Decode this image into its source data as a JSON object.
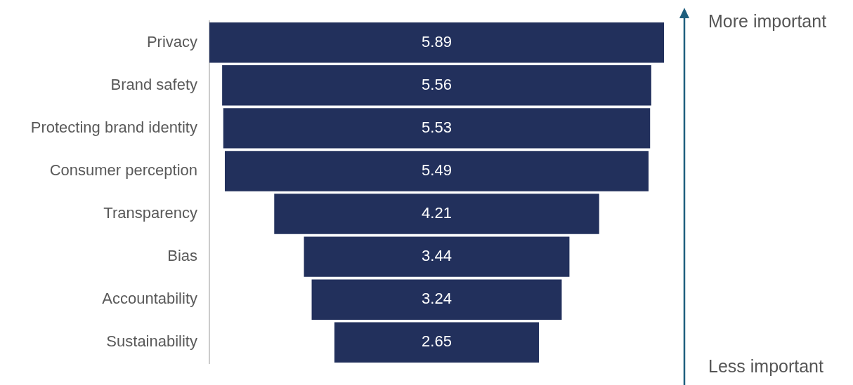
{
  "chart_data": {
    "type": "other",
    "categories": [
      "Privacy",
      "Brand safety",
      "Protecting brand identity",
      "Consumer perception",
      "Transparency",
      "Bias",
      "Accountability",
      "Sustainability"
    ],
    "values": [
      5.89,
      5.56,
      5.53,
      5.49,
      4.21,
      3.44,
      3.24,
      2.65
    ],
    "color": "#22305c",
    "data_labels": true,
    "annotations": [
      "More important",
      "Less important"
    ]
  }
}
